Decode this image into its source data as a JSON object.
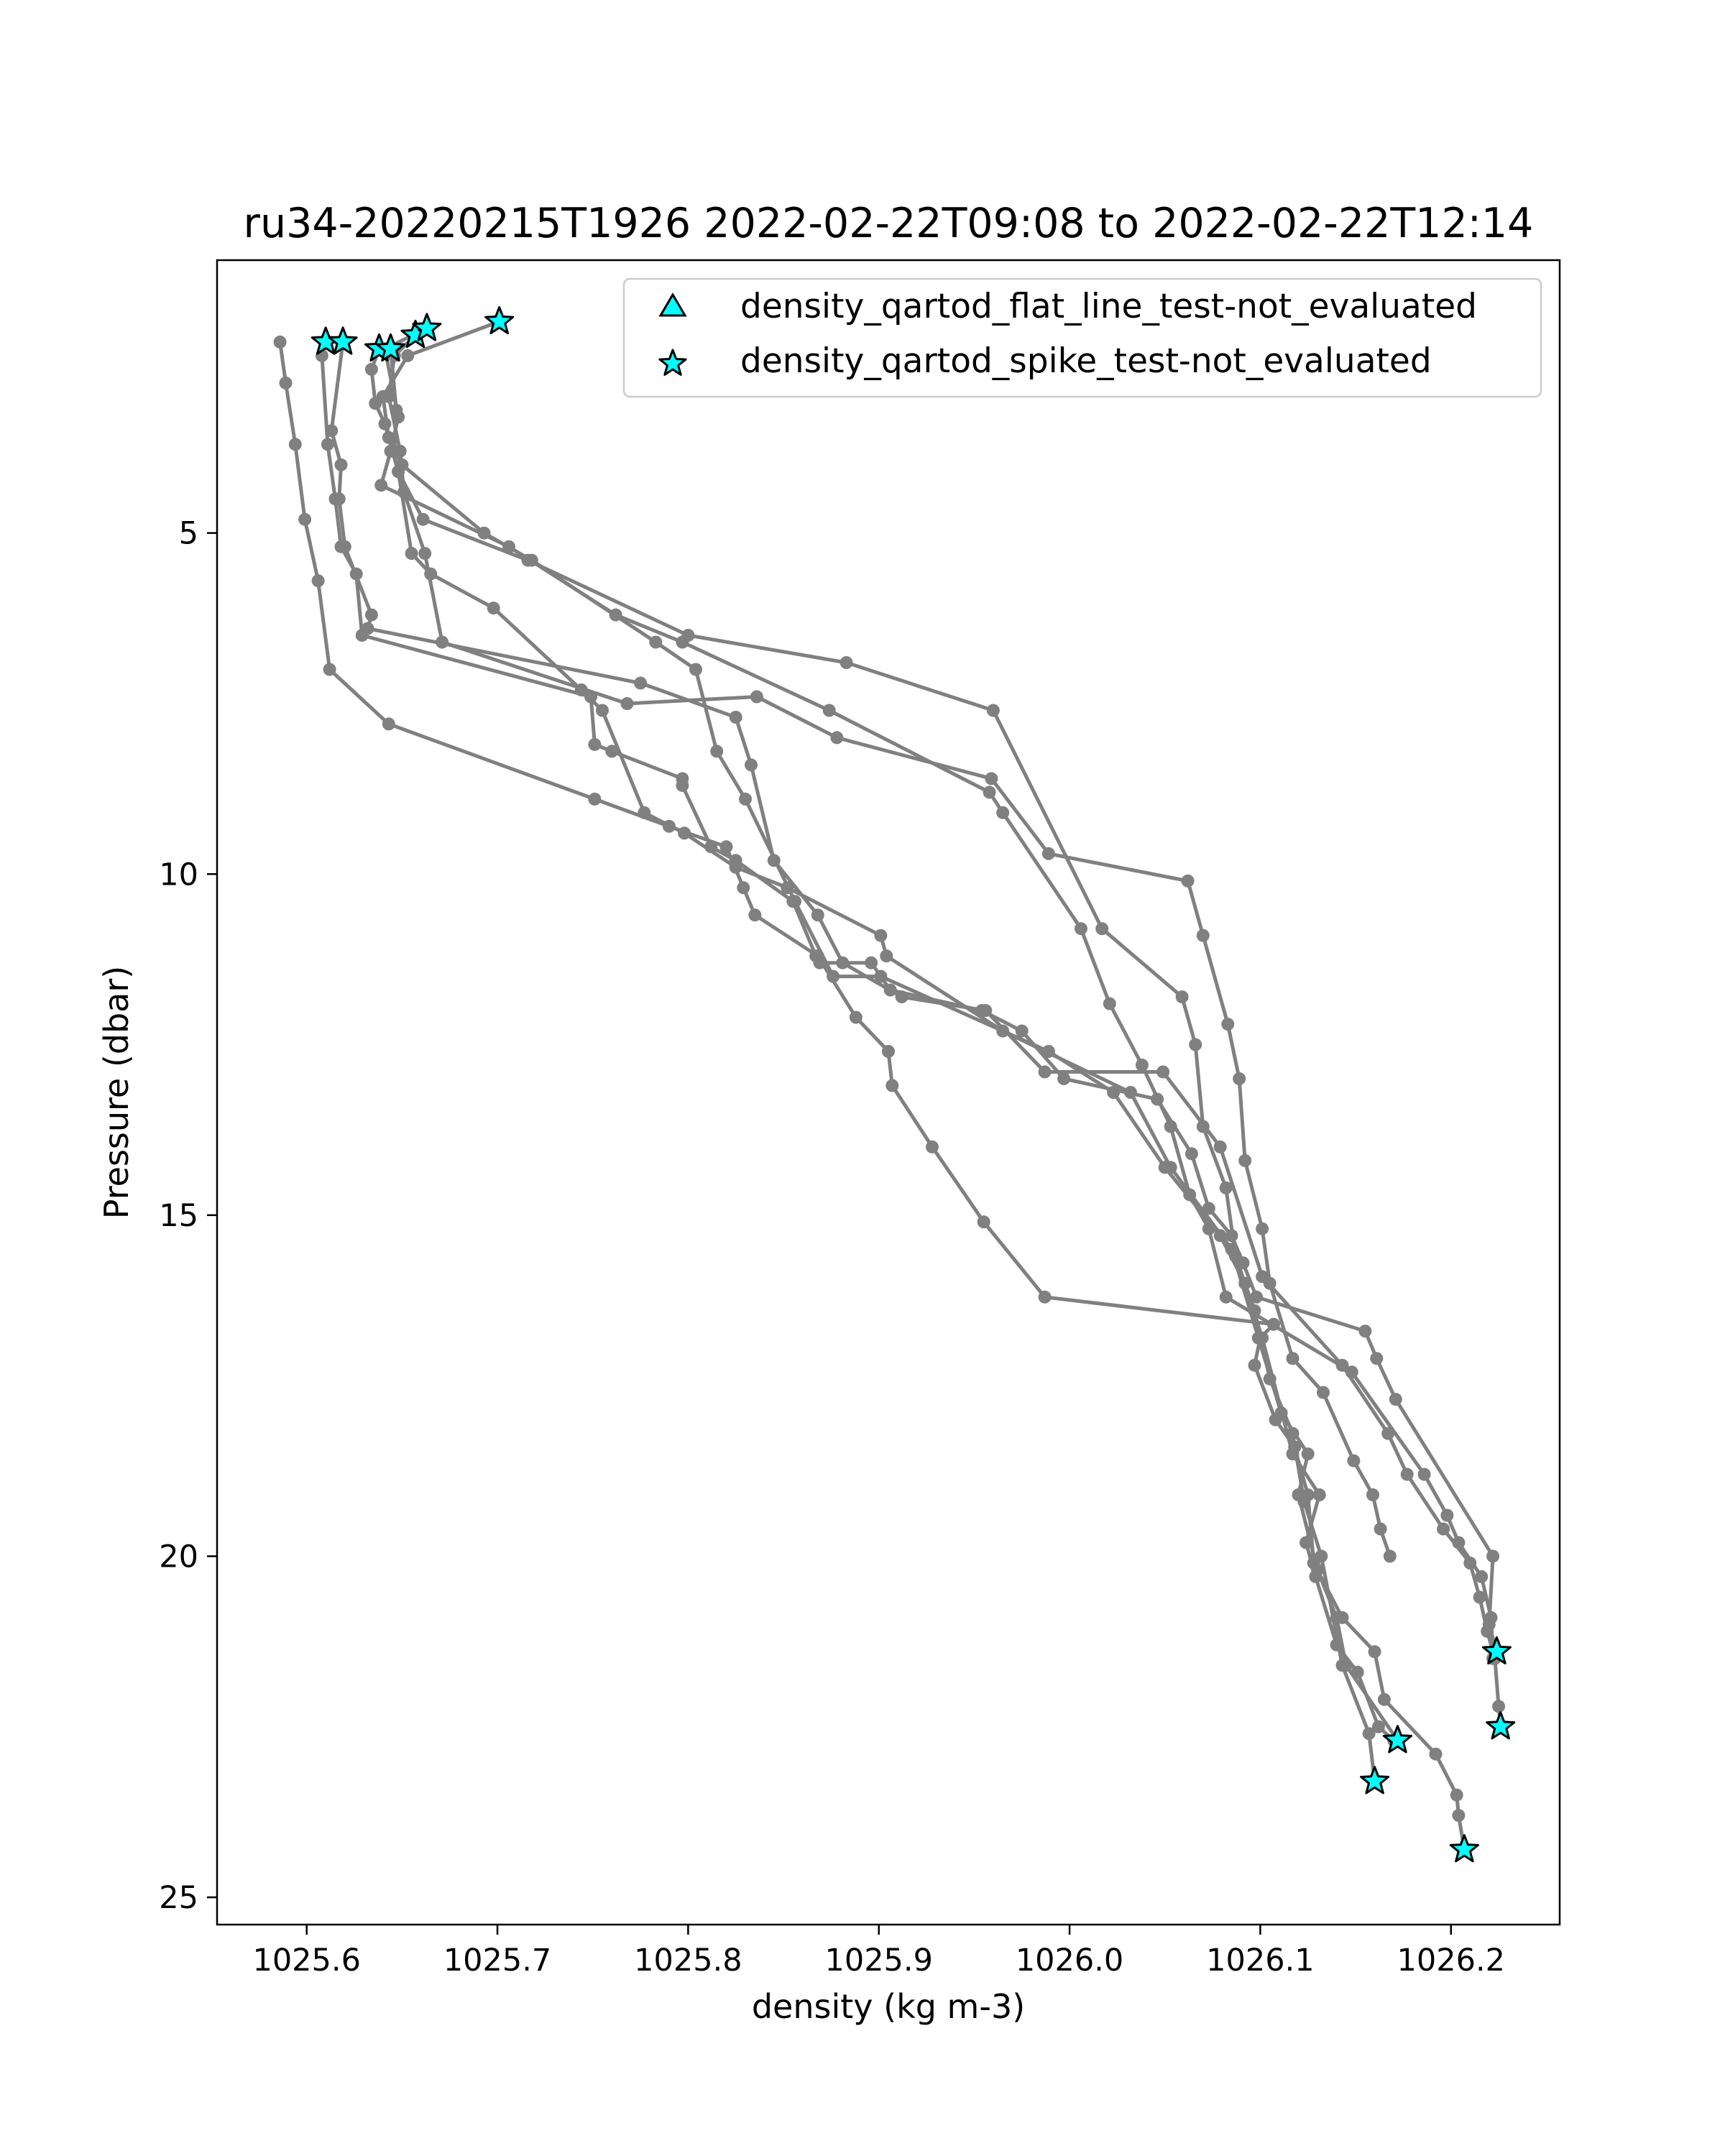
{
  "chart_data": {
    "type": "line",
    "title": "ru34-20220215T1926 2022-02-22T09:08 to 2022-02-22T12:14",
    "xlabel": "density (kg m-3)",
    "ylabel": "Pressure (dbar)",
    "xlim": [
      1025.553,
      1026.257
    ],
    "ylim": [
      25.4,
      1.0
    ],
    "y_inverted": true,
    "grid": false,
    "xticks": [
      1025.6,
      1025.7,
      1025.8,
      1025.9,
      1026.0,
      1026.1,
      1026.2
    ],
    "xtick_labels": [
      "1025.6",
      "1025.7",
      "1025.8",
      "1025.9",
      "1026.0",
      "1026.1",
      "1026.2"
    ],
    "yticks": [
      5,
      10,
      15,
      20,
      25
    ],
    "ytick_labels": [
      "5",
      "10",
      "15",
      "20",
      "25"
    ],
    "line_color": "#808080",
    "marker_color": "#00ffff",
    "legend": {
      "location": "upper right",
      "entries": [
        {
          "label": "density_qartod_flat_line_test-not_evaluated",
          "marker": "triangle"
        },
        {
          "label": "density_qartod_spike_test-not_evaluated",
          "marker": "star"
        }
      ]
    },
    "series": [
      {
        "points": [
          [
            1025.586,
            2.2
          ],
          [
            1025.589,
            2.8
          ],
          [
            1025.594,
            3.7
          ],
          [
            1025.599,
            4.8
          ],
          [
            1025.606,
            5.7
          ],
          [
            1025.612,
            7.0
          ],
          [
            1025.643,
            7.8
          ],
          [
            1025.751,
            8.9
          ],
          [
            1025.79,
            9.3
          ],
          [
            1025.82,
            9.6
          ],
          [
            1025.829,
            10.2
          ],
          [
            1025.835,
            10.6
          ],
          [
            1025.868,
            11.2
          ],
          [
            1025.888,
            12.1
          ],
          [
            1025.905,
            12.6
          ],
          [
            1025.907,
            13.1
          ],
          [
            1025.928,
            14.0
          ],
          [
            1025.955,
            15.1
          ],
          [
            1025.987,
            16.2
          ],
          [
            1026.107,
            16.6
          ],
          [
            1026.1,
            16.8
          ],
          [
            1026.097,
            17.2
          ],
          [
            1026.108,
            18.0
          ],
          [
            1026.118,
            18.4
          ],
          [
            1026.125,
            19.1
          ],
          [
            1026.128,
            20.1
          ],
          [
            1026.143,
            20.9
          ],
          [
            1026.16,
            21.4
          ],
          [
            1026.165,
            22.1
          ],
          [
            1026.192,
            22.9
          ],
          [
            1026.203,
            23.5
          ],
          [
            1026.204,
            23.8
          ],
          [
            1026.207,
            24.3
          ]
        ],
        "stars": [
          [
            1026.207,
            24.3
          ]
        ]
      },
      {
        "points": [
          [
            1025.61,
            2.2
          ],
          [
            1025.608,
            2.4
          ],
          [
            1025.611,
            3.7
          ],
          [
            1025.615,
            4.5
          ],
          [
            1025.618,
            5.2
          ],
          [
            1025.626,
            5.6
          ],
          [
            1025.629,
            6.5
          ],
          [
            1025.749,
            7.4
          ],
          [
            1025.751,
            8.1
          ],
          [
            1025.76,
            8.2
          ],
          [
            1025.797,
            8.6
          ],
          [
            1025.797,
            8.7
          ],
          [
            1025.812,
            9.6
          ],
          [
            1025.825,
            9.8
          ],
          [
            1025.855,
            10.4
          ],
          [
            1025.867,
            11.2
          ],
          [
            1025.869,
            11.3
          ],
          [
            1025.896,
            11.3
          ],
          [
            1025.906,
            11.7
          ],
          [
            1025.954,
            12.0
          ],
          [
            1025.975,
            12.3
          ],
          [
            1025.997,
            13.0
          ],
          [
            1026.046,
            13.3
          ],
          [
            1026.064,
            14.1
          ],
          [
            1026.073,
            14.9
          ],
          [
            1026.085,
            15.3
          ],
          [
            1026.091,
            15.7
          ],
          [
            1026.098,
            16.2
          ],
          [
            1026.155,
            16.7
          ],
          [
            1026.161,
            17.1
          ],
          [
            1026.171,
            17.7
          ],
          [
            1026.222,
            20.0
          ],
          [
            1026.22,
            21.0
          ],
          [
            1026.224,
            21.4
          ]
        ],
        "stars": [
          [
            1025.61,
            2.2
          ],
          [
            1026.224,
            21.4
          ]
        ]
      },
      {
        "points": [
          [
            1025.619,
            2.2
          ],
          [
            1025.613,
            3.5
          ],
          [
            1025.618,
            4.0
          ],
          [
            1025.617,
            4.5
          ],
          [
            1025.62,
            5.2
          ],
          [
            1025.634,
            6.2
          ],
          [
            1025.632,
            6.4
          ],
          [
            1025.775,
            7.2
          ],
          [
            1025.825,
            7.7
          ],
          [
            1025.833,
            8.4
          ],
          [
            1025.845,
            9.8
          ],
          [
            1025.868,
            10.6
          ],
          [
            1025.881,
            11.3
          ],
          [
            1025.912,
            11.8
          ],
          [
            1025.956,
            12.0
          ],
          [
            1025.987,
            12.9
          ],
          [
            1026.049,
            12.9
          ],
          [
            1026.079,
            14.0
          ],
          [
            1026.101,
            15.9
          ],
          [
            1026.143,
            17.2
          ],
          [
            1026.167,
            18.2
          ],
          [
            1026.177,
            18.8
          ],
          [
            1026.196,
            19.6
          ],
          [
            1026.21,
            20.1
          ],
          [
            1026.215,
            20.6
          ],
          [
            1026.219,
            21.1
          ],
          [
            1026.223,
            21.5
          ],
          [
            1026.225,
            22.2
          ],
          [
            1026.226,
            22.5
          ]
        ],
        "stars": [
          [
            1025.619,
            2.2
          ],
          [
            1026.226,
            22.5
          ]
        ]
      },
      {
        "points": [
          [
            1025.638,
            2.3
          ],
          [
            1025.634,
            2.6
          ],
          [
            1025.636,
            3.1
          ],
          [
            1025.641,
            3.4
          ],
          [
            1025.645,
            3.8
          ],
          [
            1025.648,
            4.1
          ],
          [
            1025.655,
            5.3
          ],
          [
            1025.665,
            5.6
          ],
          [
            1025.698,
            6.1
          ],
          [
            1025.744,
            7.3
          ],
          [
            1025.755,
            7.6
          ],
          [
            1025.777,
            9.1
          ],
          [
            1025.798,
            9.4
          ],
          [
            1025.825,
            9.9
          ],
          [
            1025.852,
            10.2
          ],
          [
            1025.901,
            10.9
          ],
          [
            1025.904,
            11.2
          ],
          [
            1025.965,
            12.3
          ],
          [
            1026.032,
            13.2
          ],
          [
            1026.053,
            14.3
          ],
          [
            1026.085,
            15.5
          ],
          [
            1026.099,
            16.8
          ],
          [
            1026.111,
            17.9
          ],
          [
            1026.125,
            18.5
          ],
          [
            1026.12,
            19.1
          ],
          [
            1026.13,
            20.2
          ],
          [
            1026.14,
            20.9
          ],
          [
            1026.145,
            21.6
          ],
          [
            1026.172,
            22.7
          ]
        ],
        "stars": [
          [
            1025.638,
            2.3
          ],
          [
            1026.172,
            22.7
          ]
        ]
      },
      {
        "points": [
          [
            1025.644,
            2.3
          ],
          [
            1025.647,
            3.2
          ],
          [
            1025.646,
            3.8
          ],
          [
            1025.65,
            4.0
          ],
          [
            1025.693,
            5.0
          ],
          [
            1025.718,
            5.4
          ],
          [
            1025.783,
            6.6
          ],
          [
            1025.804,
            7.0
          ],
          [
            1025.815,
            8.2
          ],
          [
            1025.83,
            8.9
          ],
          [
            1025.856,
            10.4
          ],
          [
            1025.876,
            11.5
          ],
          [
            1025.901,
            11.5
          ],
          [
            1025.989,
            12.6
          ],
          [
            1026.023,
            13.2
          ],
          [
            1026.05,
            14.3
          ],
          [
            1026.079,
            15.3
          ],
          [
            1026.092,
            16.0
          ],
          [
            1026.101,
            16.8
          ],
          [
            1026.117,
            18.5
          ],
          [
            1026.131,
            19.1
          ],
          [
            1026.124,
            19.8
          ],
          [
            1026.129,
            20.3
          ],
          [
            1026.14,
            21.3
          ],
          [
            1026.151,
            21.7
          ],
          [
            1026.162,
            22.5
          ],
          [
            1026.17,
            22.7
          ]
        ],
        "stars": [
          [
            1025.644,
            2.3
          ]
        ]
      },
      {
        "points": [
          [
            1025.657,
            2.1
          ],
          [
            1025.646,
            2.4
          ],
          [
            1025.643,
            3.0
          ],
          [
            1025.649,
            3.8
          ],
          [
            1025.651,
            4.4
          ],
          [
            1025.662,
            5.3
          ],
          [
            1025.671,
            6.6
          ],
          [
            1025.768,
            7.5
          ],
          [
            1025.836,
            7.4
          ],
          [
            1025.878,
            8.0
          ],
          [
            1025.959,
            8.6
          ],
          [
            1025.989,
            9.7
          ],
          [
            1026.062,
            10.1
          ],
          [
            1026.07,
            10.9
          ],
          [
            1026.083,
            12.2
          ],
          [
            1026.089,
            13.0
          ],
          [
            1026.092,
            14.2
          ],
          [
            1026.101,
            15.2
          ],
          [
            1026.105,
            16.0
          ],
          [
            1026.117,
            17.1
          ],
          [
            1026.133,
            17.6
          ],
          [
            1026.149,
            18.6
          ],
          [
            1026.159,
            19.1
          ],
          [
            1026.163,
            19.6
          ],
          [
            1026.168,
            20.0
          ]
        ],
        "stars": [
          [
            1025.657,
            2.1
          ]
        ]
      },
      {
        "points": [
          [
            1025.663,
            2.0
          ],
          [
            1025.641,
            2.3
          ],
          [
            1025.648,
            3.3
          ],
          [
            1025.644,
            3.8
          ],
          [
            1025.639,
            4.3
          ],
          [
            1025.706,
            5.2
          ],
          [
            1025.762,
            6.2
          ],
          [
            1025.797,
            6.6
          ],
          [
            1025.874,
            7.6
          ],
          [
            1025.958,
            8.8
          ],
          [
            1025.965,
            9.1
          ],
          [
            1026.006,
            10.8
          ],
          [
            1026.021,
            11.9
          ],
          [
            1026.038,
            12.8
          ],
          [
            1026.053,
            13.7
          ],
          [
            1026.063,
            14.7
          ],
          [
            1026.073,
            15.2
          ],
          [
            1026.082,
            16.2
          ],
          [
            1026.148,
            17.3
          ],
          [
            1026.186,
            18.8
          ],
          [
            1026.198,
            19.4
          ],
          [
            1026.204,
            19.8
          ],
          [
            1026.216,
            20.3
          ],
          [
            1026.221,
            20.9
          ],
          [
            1026.222,
            21.5
          ]
        ],
        "stars": [
          [
            1025.663,
            2.0
          ]
        ]
      },
      {
        "points": [
          [
            1025.701,
            1.9
          ],
          [
            1025.653,
            2.4
          ],
          [
            1025.64,
            3.0
          ],
          [
            1025.643,
            3.6
          ],
          [
            1025.648,
            4.1
          ],
          [
            1025.661,
            4.8
          ],
          [
            1025.716,
            5.4
          ],
          [
            1025.8,
            6.5
          ],
          [
            1025.883,
            6.9
          ],
          [
            1025.96,
            7.6
          ],
          [
            1026.017,
            10.8
          ],
          [
            1026.059,
            11.8
          ],
          [
            1026.066,
            12.5
          ],
          [
            1026.07,
            13.7
          ],
          [
            1026.082,
            14.6
          ],
          [
            1026.087,
            15.6
          ],
          [
            1026.097,
            16.4
          ],
          [
            1026.105,
            17.4
          ],
          [
            1026.117,
            18.2
          ],
          [
            1026.123,
            19.2
          ],
          [
            1026.132,
            20.0
          ],
          [
            1026.143,
            21.6
          ],
          [
            1026.157,
            22.6
          ],
          [
            1026.16,
            23.3
          ]
        ],
        "stars": [
          [
            1025.701,
            1.9
          ],
          [
            1026.16,
            23.3
          ]
        ]
      }
    ]
  }
}
